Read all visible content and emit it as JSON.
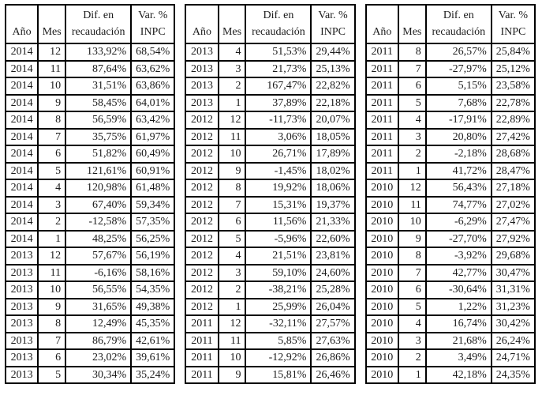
{
  "page": {
    "background": "#ffffff",
    "text_color": "#1b1b1b",
    "border_color": "#000000"
  },
  "columns": {
    "year": "Año",
    "month": "Mes",
    "dif_line1": "Dif. en",
    "dif_line2": "recaudación",
    "var_line1": "Var. %",
    "var_line2": "INPC"
  },
  "tables": [
    {
      "rows": [
        [
          "2014",
          "12",
          "133,92%",
          "68,54%"
        ],
        [
          "2014",
          "11",
          "87,64%",
          "63,62%"
        ],
        [
          "2014",
          "10",
          "31,51%",
          "63,86%"
        ],
        [
          "2014",
          "9",
          "58,45%",
          "64,01%"
        ],
        [
          "2014",
          "8",
          "56,59%",
          "63,42%"
        ],
        [
          "2014",
          "7",
          "35,75%",
          "61,97%"
        ],
        [
          "2014",
          "6",
          "51,82%",
          "60,49%"
        ],
        [
          "2014",
          "5",
          "121,61%",
          "60,91%"
        ],
        [
          "2014",
          "4",
          "120,98%",
          "61,48%"
        ],
        [
          "2014",
          "3",
          "67,40%",
          "59,34%"
        ],
        [
          "2014",
          "2",
          "-12,58%",
          "57,35%"
        ],
        [
          "2014",
          "1",
          "48,25%",
          "56,25%"
        ],
        [
          "2013",
          "12",
          "57,67%",
          "56,19%"
        ],
        [
          "2013",
          "11",
          "-6,16%",
          "58,16%"
        ],
        [
          "2013",
          "10",
          "56,55%",
          "54,35%"
        ],
        [
          "2013",
          "9",
          "31,65%",
          "49,38%"
        ],
        [
          "2013",
          "8",
          "12,49%",
          "45,35%"
        ],
        [
          "2013",
          "7",
          "86,79%",
          "42,61%"
        ],
        [
          "2013",
          "6",
          "23,02%",
          "39,61%"
        ],
        [
          "2013",
          "5",
          "30,34%",
          "35,24%"
        ]
      ]
    },
    {
      "rows": [
        [
          "2013",
          "4",
          "51,53%",
          "29,44%"
        ],
        [
          "2013",
          "3",
          "21,73%",
          "25,13%"
        ],
        [
          "2013",
          "2",
          "167,47%",
          "22,82%"
        ],
        [
          "2013",
          "1",
          "37,89%",
          "22,18%"
        ],
        [
          "2012",
          "12",
          "-11,73%",
          "20,07%"
        ],
        [
          "2012",
          "11",
          "3,06%",
          "18,05%"
        ],
        [
          "2012",
          "10",
          "26,71%",
          "17,89%"
        ],
        [
          "2012",
          "9",
          "-1,45%",
          "18,02%"
        ],
        [
          "2012",
          "8",
          "19,92%",
          "18,06%"
        ],
        [
          "2012",
          "7",
          "15,31%",
          "19,37%"
        ],
        [
          "2012",
          "6",
          "11,56%",
          "21,33%"
        ],
        [
          "2012",
          "5",
          "-5,96%",
          "22,60%"
        ],
        [
          "2012",
          "4",
          "21,51%",
          "23,81%"
        ],
        [
          "2012",
          "3",
          "59,10%",
          "24,60%"
        ],
        [
          "2012",
          "2",
          "-38,21%",
          "25,28%"
        ],
        [
          "2012",
          "1",
          "25,99%",
          "26,04%"
        ],
        [
          "2011",
          "12",
          "-32,11%",
          "27,57%"
        ],
        [
          "2011",
          "11",
          "5,85%",
          "27,63%"
        ],
        [
          "2011",
          "10",
          "-12,92%",
          "26,86%"
        ],
        [
          "2011",
          "9",
          "15,81%",
          "26,46%"
        ]
      ]
    },
    {
      "rows": [
        [
          "2011",
          "8",
          "26,57%",
          "25,84%"
        ],
        [
          "2011",
          "7",
          "-27,97%",
          "25,12%"
        ],
        [
          "2011",
          "6",
          "5,15%",
          "23,58%"
        ],
        [
          "2011",
          "5",
          "7,68%",
          "22,78%"
        ],
        [
          "2011",
          "4",
          "-17,91%",
          "22,89%"
        ],
        [
          "2011",
          "3",
          "20,80%",
          "27,42%"
        ],
        [
          "2011",
          "2",
          "-2,18%",
          "28,68%"
        ],
        [
          "2011",
          "1",
          "41,72%",
          "28,47%"
        ],
        [
          "2010",
          "12",
          "56,43%",
          "27,18%"
        ],
        [
          "2010",
          "11",
          "74,77%",
          "27,02%"
        ],
        [
          "2010",
          "10",
          "-6,29%",
          "27,47%"
        ],
        [
          "2010",
          "9",
          "-27,70%",
          "27,92%"
        ],
        [
          "2010",
          "8",
          "-3,92%",
          "29,68%"
        ],
        [
          "2010",
          "7",
          "42,77%",
          "30,47%"
        ],
        [
          "2010",
          "6",
          "-30,64%",
          "31,31%"
        ],
        [
          "2010",
          "5",
          "1,22%",
          "31,23%"
        ],
        [
          "2010",
          "4",
          "16,74%",
          "30,42%"
        ],
        [
          "2010",
          "3",
          "21,68%",
          "26,24%"
        ],
        [
          "2010",
          "2",
          "3,49%",
          "24,71%"
        ],
        [
          "2010",
          "1",
          "42,18%",
          "24,35%"
        ]
      ]
    }
  ]
}
